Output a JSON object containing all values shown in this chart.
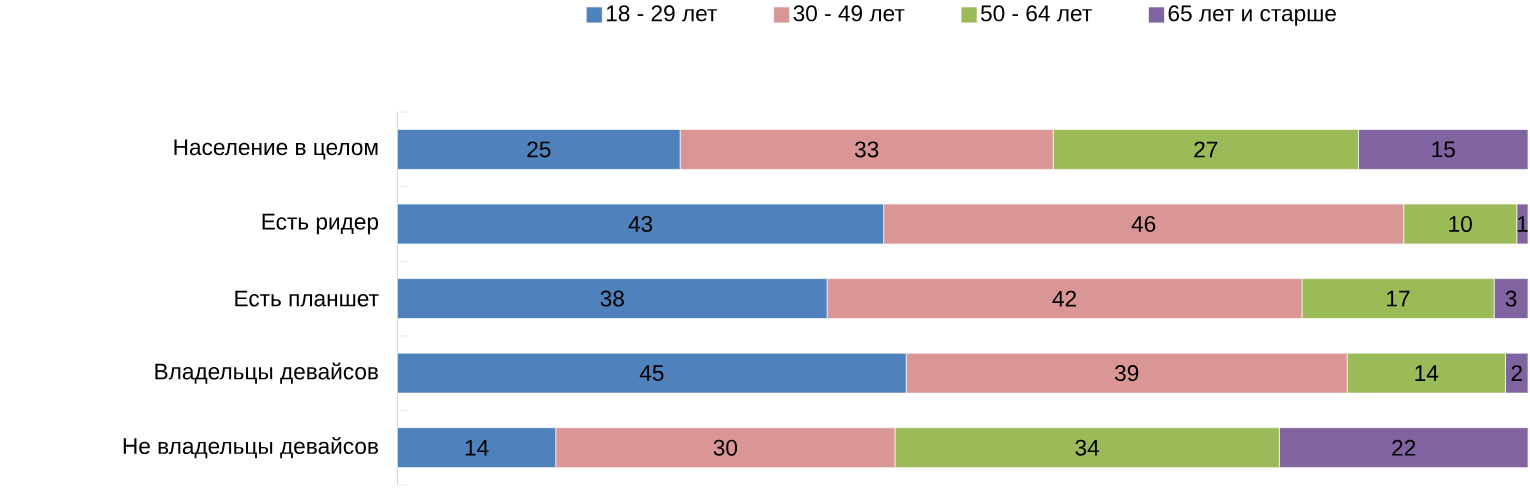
{
  "chart_data": {
    "type": "bar",
    "orientation": "horizontal",
    "stacked": true,
    "data_labels": true,
    "legend": "top",
    "xlim": [
      0,
      100
    ],
    "categories": [
      "Население в целом",
      "Есть ридер",
      "Есть планшет",
      "Владельцы девайсов",
      "Не владельцы девайсов"
    ],
    "series": [
      {
        "name": "18 - 29 лет",
        "color": "#4f81bd",
        "values": [
          25,
          43,
          38,
          45,
          14
        ]
      },
      {
        "name": "30 - 49 лет",
        "color": "#d99694",
        "values": [
          33,
          46,
          42,
          39,
          30
        ]
      },
      {
        "name": "50 - 64 лет",
        "color": "#9bbb59",
        "values": [
          27,
          10,
          17,
          14,
          34
        ]
      },
      {
        "name": "65 лет и старше",
        "color": "#8064a2",
        "values": [
          15,
          1,
          3,
          2,
          22
        ]
      }
    ]
  }
}
